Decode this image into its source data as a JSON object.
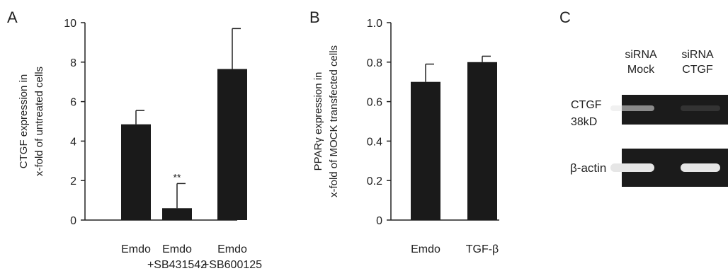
{
  "colors": {
    "bar": "#1a1a1a",
    "axis": "#222222",
    "blot_bg": "#1b1b1b",
    "band": "#e6e6e6"
  },
  "chart_data": [
    {
      "panel_label": "A",
      "type": "bar",
      "categories": [
        [
          "Emdo"
        ],
        [
          "Emdo",
          "+SB431542"
        ],
        [
          "Emdo",
          "+SB600125"
        ]
      ],
      "values": [
        4.85,
        0.6,
        7.65
      ],
      "error_upper": [
        5.55,
        1.85,
        9.7
      ],
      "annotations": [
        "",
        "**",
        ""
      ],
      "ylabel": [
        "CTGF expression in",
        "x-fold of untreated cells"
      ],
      "ylim": [
        0,
        10
      ],
      "yticks": [
        0,
        2,
        4,
        6,
        8,
        10
      ],
      "ytick_labels": [
        "0",
        "2",
        "4",
        "6",
        "8",
        "10"
      ],
      "grid": false
    },
    {
      "panel_label": "B",
      "type": "bar",
      "categories": [
        [
          "Emdo"
        ],
        [
          "TGF-β"
        ]
      ],
      "values": [
        0.7,
        0.8
      ],
      "error_upper": [
        0.79,
        0.83
      ],
      "annotations": [
        "",
        ""
      ],
      "ylabel": [
        "PPARγ expression in",
        "x-fold of MOCK transfected cells"
      ],
      "ylim": [
        0,
        1.0
      ],
      "yticks": [
        0,
        0.2,
        0.4,
        0.6,
        0.8,
        1.0
      ],
      "ytick_labels": [
        "0",
        "0.2",
        "0.4",
        "0.6",
        "0.8",
        "1.0"
      ],
      "grid": false
    }
  ],
  "blot": {
    "panel_label": "C",
    "lanes": [
      [
        "siRNA",
        "Mock"
      ],
      [
        "siRNA",
        "CTGF"
      ]
    ],
    "rows": [
      {
        "label": [
          "CTGF",
          "38kD"
        ],
        "band_intensity": [
          0.55,
          0.12
        ]
      },
      {
        "label": [
          "β-actin"
        ],
        "band_intensity": [
          1.0,
          1.0
        ]
      }
    ]
  }
}
